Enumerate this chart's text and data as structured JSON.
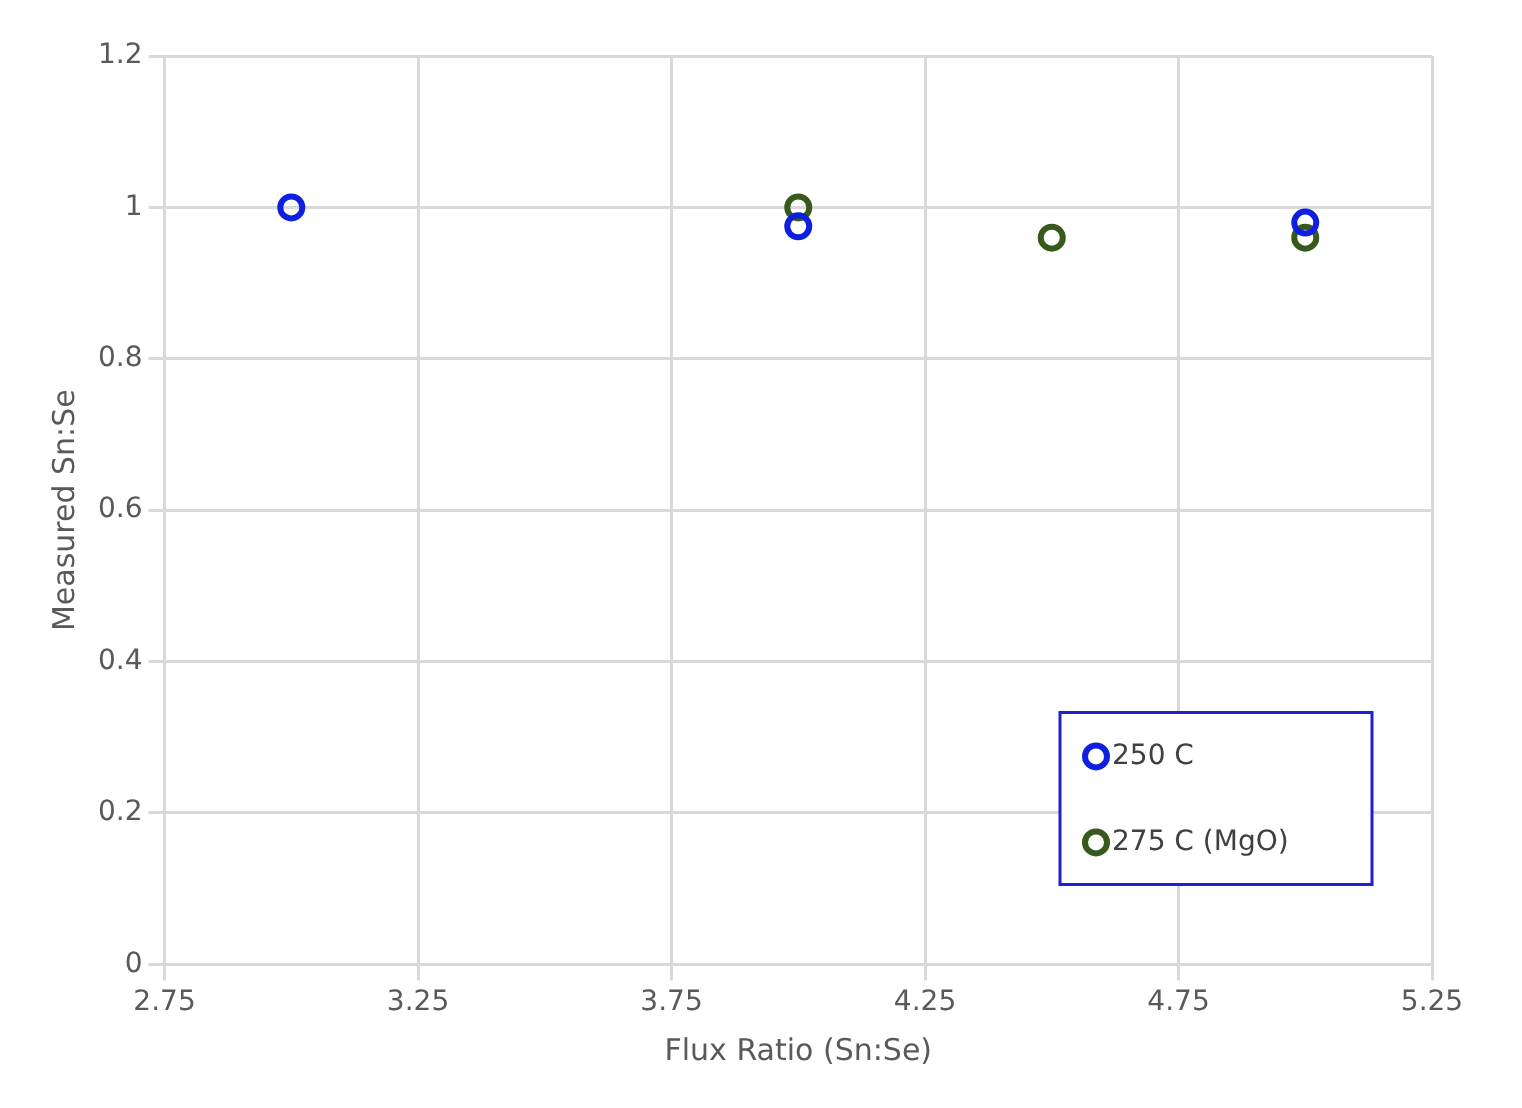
{
  "chart_data": {
    "type": "scatter",
    "xlabel": "Flux Ratio (Sn:Se)",
    "ylabel": "Measured Sn:Se",
    "xlim": [
      2.75,
      5.25
    ],
    "xticks": [
      2.75,
      3.25,
      3.75,
      4.25,
      4.75,
      5.25
    ],
    "ylim": [
      0,
      1.2
    ],
    "yticks": [
      {
        "value": 0,
        "label": "0"
      },
      {
        "value": 0.2,
        "label": "0.2"
      },
      {
        "value": 0.4,
        "label": "0.4"
      },
      {
        "value": 0.6,
        "label": "0.6"
      },
      {
        "value": 0.8,
        "label": "0.8"
      },
      {
        "value": 1,
        "label": "1"
      },
      {
        "value": 1.2,
        "label": "1.2"
      }
    ],
    "grid": true,
    "legend": "bottom right",
    "marker": "circle",
    "series": [
      {
        "name": "250 C",
        "color": "#0f1fe0",
        "x": [
          3,
          4,
          5
        ],
        "values": [
          1.0,
          0.975,
          0.98
        ]
      },
      {
        "name": "275 C (MgO)",
        "color": "#375a1c",
        "x": [
          4,
          4.5,
          5
        ],
        "values": [
          1.0,
          0.96,
          0.96
        ]
      }
    ]
  }
}
